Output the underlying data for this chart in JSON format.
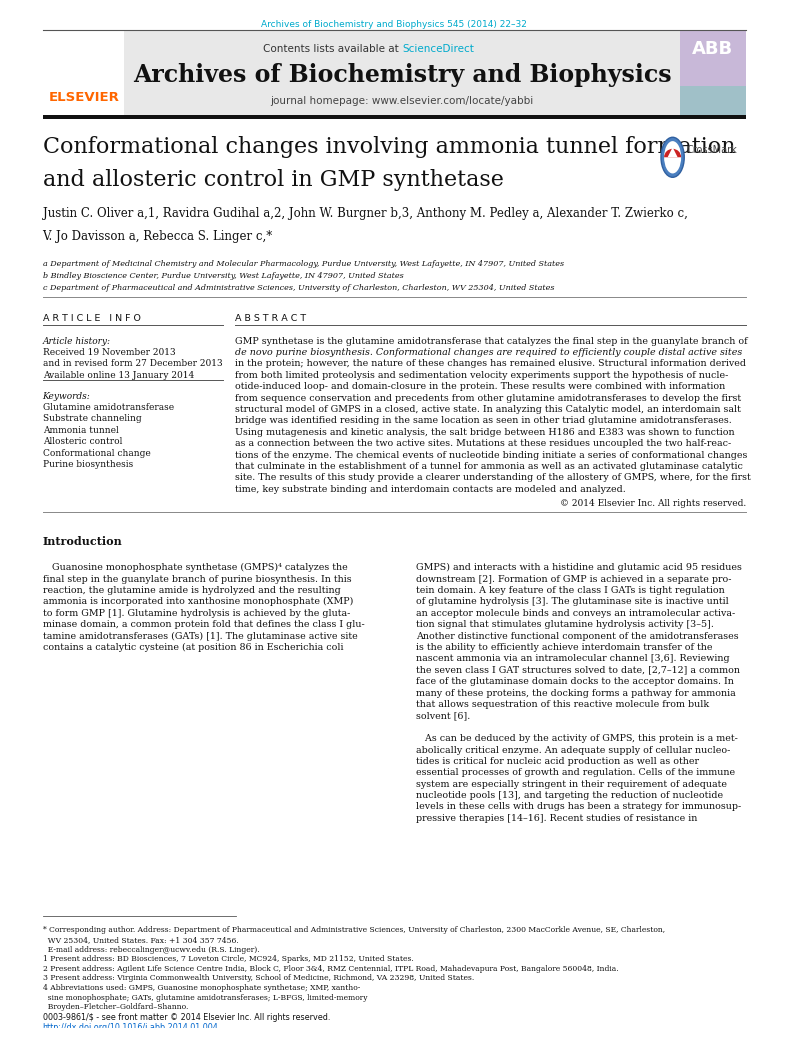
{
  "page_width": 9.92,
  "page_height": 13.23,
  "background_color": "#ffffff",
  "top_journal_ref": "Archives of Biochemistry and Biophysics 545 (2014) 22–32",
  "top_journal_ref_color": "#00aacc",
  "header_bg_color": "#e8e8e8",
  "journal_name": "Archives of Biochemistry and Biophysics",
  "journal_homepage": "journal homepage: www.elsevier.com/locate/yabbi",
  "sciencedirect_color": "#00aacc",
  "elsevier_color": "#FF6600",
  "article_title_line1": "Conformational changes involving ammonia tunnel formation",
  "article_title_line2": "and allosteric control in GMP synthetase",
  "article_title_fontsize": 16,
  "authors_line1": "Justin C. Oliver a,1, Ravidra Gudihal a,2, John W. Burgner b,3, Anthony M. Pedley a, Alexander T. Zwierko c,",
  "authors_line2": "V. Jo Davisson a, Rebecca S. Linger c,*",
  "affil_a": "a Department of Medicinal Chemistry and Molecular Pharmacology, Purdue University, West Lafayette, IN 47907, United States",
  "affil_b": "b Bindley Bioscience Center, Purdue University, West Lafayette, IN 47907, United States",
  "affil_c": "c Department of Pharmaceutical and Administrative Sciences, University of Charleston, Charleston, WV 25304, United States",
  "article_info_header": "A R T I C L E   I N F O",
  "abstract_header": "A B S T R A C T",
  "article_history_label": "Article history:",
  "received": "Received 19 November 2013",
  "revised": "and in revised form 27 December 2013",
  "available": "Available online 13 January 2014",
  "keywords_label": "Keywords:",
  "keywords": [
    "Glutamine amidotransferase",
    "Substrate channeling",
    "Ammonia tunnel",
    "Allosteric control",
    "Conformational change",
    "Purine biosynthesis"
  ],
  "abstract_lines": [
    "GMP synthetase is the glutamine amidotransferase that catalyzes the final step in the guanylate branch of",
    "de novo purine biosynthesis. Conformational changes are required to efficiently couple distal active sites",
    "in the protein; however, the nature of these changes has remained elusive. Structural information derived",
    "from both limited proteolysis and sedimentation velocity experiments support the hypothesis of nucle-",
    "otide-induced loop- and domain-closure in the protein. These results were combined with information",
    "from sequence conservation and precedents from other glutamine amidotransferases to develop the first",
    "structural model of GMPS in a closed, active state. In analyzing this Catalytic model, an interdomain salt",
    "bridge was identified residing in the same location as seen in other triad glutamine amidotransferases.",
    "Using mutagenesis and kinetic analysis, the salt bridge between H186 and E383 was shown to function",
    "as a connection between the two active sites. Mutations at these residues uncoupled the two half-reac-",
    "tions of the enzyme. The chemical events of nucleotide binding initiate a series of conformational changes",
    "that culminate in the establishment of a tunnel for ammonia as well as an activated glutaminase catalytic",
    "site. The results of this study provide a clearer understanding of the allostery of GMPS, where, for the first",
    "time, key substrate binding and interdomain contacts are modeled and analyzed."
  ],
  "abstract_italic_line": 1,
  "copyright": "© 2014 Elsevier Inc. All rights reserved.",
  "intro_header": "Introduction",
  "intro_left_lines": [
    "   Guanosine monophosphate synthetase (GMPS)⁴ catalyzes the",
    "final step in the guanylate branch of purine biosynthesis. In this",
    "reaction, the glutamine amide is hydrolyzed and the resulting",
    "ammonia is incorporated into xanthosine monophosphate (XMP)",
    "to form GMP [1]. Glutamine hydrolysis is achieved by the gluta-",
    "minase domain, a common protein fold that defines the class I glu-",
    "tamine amidotransferases (GATs) [1]. The glutaminase active site",
    "contains a catalytic cysteine (at position 86 in Escherichia coli"
  ],
  "intro_right_lines": [
    "GMPS) and interacts with a histidine and glutamic acid 95 residues",
    "downstream [2]. Formation of GMP is achieved in a separate pro-",
    "tein domain. A key feature of the class I GATs is tight regulation",
    "of glutamine hydrolysis [3]. The glutaminase site is inactive until",
    "an acceptor molecule binds and conveys an intramolecular activa-",
    "tion signal that stimulates glutamine hydrolysis activity [3–5].",
    "Another distinctive functional component of the amidotransferases",
    "is the ability to efficiently achieve interdomain transfer of the",
    "nascent ammonia via an intramolecular channel [3,6]. Reviewing",
    "the seven class I GAT structures solved to date, [2,7–12] a common",
    "face of the glutaminase domain docks to the acceptor domains. In",
    "many of these proteins, the docking forms a pathway for ammonia",
    "that allows sequestration of this reactive molecule from bulk",
    "solvent [6].",
    "",
    "   As can be deduced by the activity of GMPS, this protein is a met-",
    "abolically critical enzyme. An adequate supply of cellular nucleo-",
    "tides is critical for nucleic acid production as well as other",
    "essential processes of growth and regulation. Cells of the immune",
    "system are especially stringent in their requirement of adequate",
    "nucleotide pools [13], and targeting the reduction of nucleotide",
    "levels in these cells with drugs has been a strategy for immunosup-",
    "pressive therapies [14–16]. Recent studies of resistance in"
  ],
  "footnote_star": "* Corresponding author. Address: Department of Pharmaceutical and Administrative Sciences, University of Charleston, 2300 MacCorkle Avenue, SE, Charleston,",
  "footnote_star2": "  WV 25304, United States. Fax: +1 304 357 7456.",
  "footnote_email": "  E-mail address: rebeccalinger@ucwv.edu (R.S. Linger).",
  "footnote_1": "1 Present address: BD Biosciences, 7 Loveton Circle, MC924, Sparks, MD 21152, United States.",
  "footnote_2": "2 Present address: Agilent Life Science Centre India, Block C, Floor 3&4, RMZ Centennial, ITPL Road, Mahadevapura Post, Bangalore 560048, India.",
  "footnote_3": "3 Present address: Virginia Commonwealth University, School of Medicine, Richmond, VA 23298, United States.",
  "footnote_4a": "4 Abbreviations used: GMPS, Guanosine monophosphate synthetase; XMP, xantho-",
  "footnote_4b": "  sine monophosphate; GATs, glutamine amidotransferases; L-BFGS, limited-memory",
  "footnote_4c": "  Broyden–Fletcher–Goldfard–Shanno.",
  "issn_text": "0003-9861/$ - see front matter © 2014 Elsevier Inc. All rights reserved.",
  "doi_text": "http://dx.doi.org/10.1016/j.abb.2014.01.004",
  "doi_color": "#0066cc",
  "text_color": "#111111"
}
